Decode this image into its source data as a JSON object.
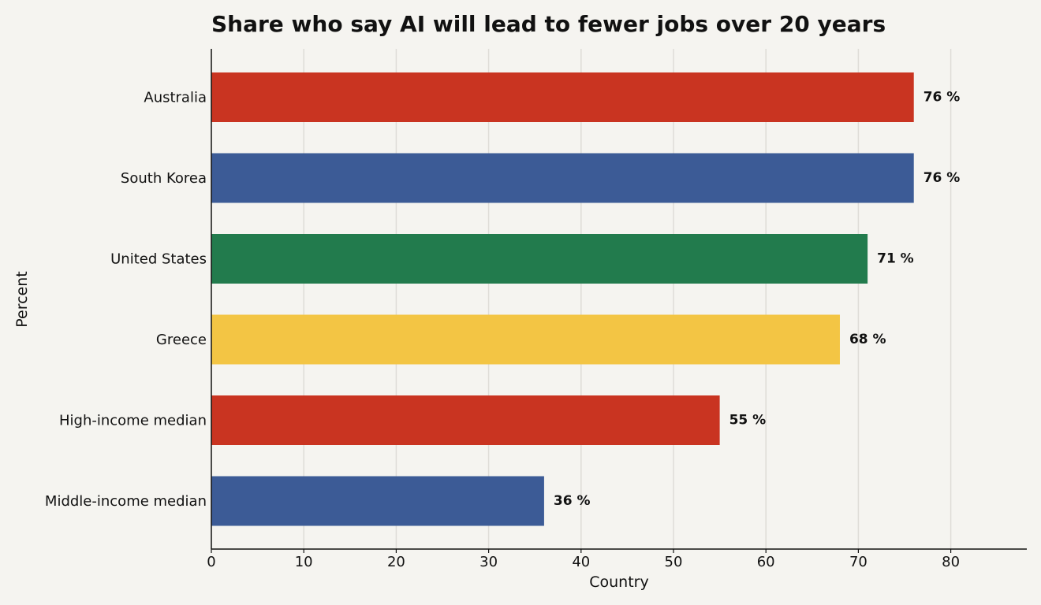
{
  "chart_data": {
    "type": "bar",
    "orientation": "horizontal",
    "title": "Share who say AI will lead to fewer jobs over 20 years",
    "xlabel": "Country",
    "ylabel": "Percent",
    "xlim": [
      0,
      88
    ],
    "xticks": [
      0,
      10,
      20,
      30,
      40,
      50,
      60,
      70,
      80
    ],
    "grid": true,
    "categories": [
      "Australia",
      "South Korea",
      "United States",
      "Greece",
      "High-income median",
      "Middle-income median"
    ],
    "values": [
      76,
      76,
      71,
      68,
      55,
      36
    ],
    "value_labels": [
      "76 %",
      "76 %",
      "71 %",
      "68 %",
      "55 %",
      "36 %"
    ],
    "colors": [
      "#c93421",
      "#3c5b96",
      "#227b4d",
      "#f3c544",
      "#c93421",
      "#3c5b96"
    ]
  }
}
